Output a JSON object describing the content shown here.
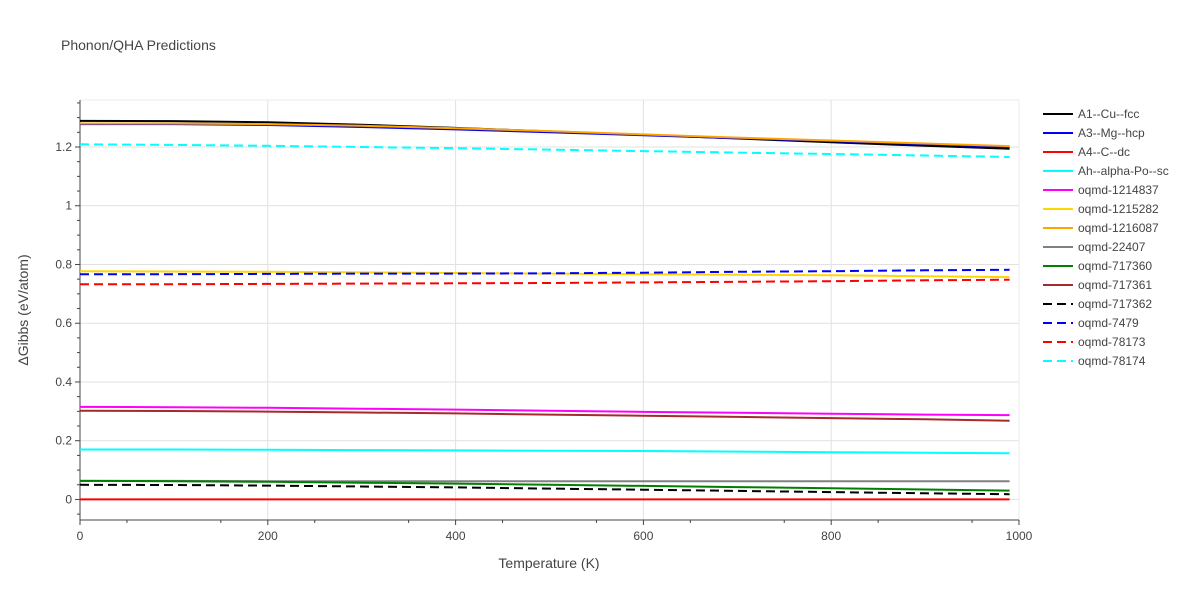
{
  "chart_data": {
    "type": "line",
    "title": "Phonon/QHA Predictions",
    "xlabel": "Temperature (K)",
    "ylabel": "ΔGibbs (eV/atom)",
    "xlim": [
      0,
      1000
    ],
    "ylim": [
      -0.07,
      1.36
    ],
    "xticks": [
      0,
      200,
      400,
      600,
      800,
      1000
    ],
    "yticks": [
      0,
      0.2,
      0.4,
      0.6,
      0.8,
      1,
      1.2
    ],
    "xtick_labels": [
      "0",
      "200",
      "400",
      "600",
      "800",
      "1000"
    ],
    "ytick_labels": [
      "0",
      "0.2",
      "0.4",
      "0.6",
      "0.8",
      "1",
      "1.2"
    ],
    "grid": true,
    "legend_position": "right",
    "x": [
      0,
      100,
      200,
      300,
      400,
      500,
      600,
      700,
      800,
      900,
      990
    ],
    "series": [
      {
        "name": "A1--Cu--fcc",
        "color": "#000000",
        "dash": "solid",
        "values": [
          1.289,
          1.288,
          1.284,
          1.276,
          1.265,
          1.253,
          1.242,
          1.229,
          1.216,
          1.204,
          1.194
        ]
      },
      {
        "name": "A3--Mg--hcp",
        "color": "#0000ff",
        "dash": "solid",
        "values": [
          1.278,
          1.278,
          1.275,
          1.268,
          1.26,
          1.25,
          1.24,
          1.23,
          1.22,
          1.21,
          1.2
        ]
      },
      {
        "name": "A4--C--dc",
        "color": "#ff0000",
        "dash": "solid",
        "values": [
          0.0,
          0.0,
          0.0,
          0.0,
          0.0,
          0.0,
          0.0,
          0.0,
          0.0,
          0.0,
          0.0
        ]
      },
      {
        "name": "Ah--alpha-Po--sc",
        "color": "#00ffff",
        "dash": "solid",
        "values": [
          0.17,
          0.17,
          0.169,
          0.168,
          0.167,
          0.166,
          0.165,
          0.163,
          0.161,
          0.159,
          0.157
        ]
      },
      {
        "name": "oqmd-1214837",
        "color": "#ff00ff",
        "dash": "solid",
        "values": [
          0.315,
          0.314,
          0.312,
          0.309,
          0.306,
          0.302,
          0.298,
          0.295,
          0.292,
          0.289,
          0.287
        ]
      },
      {
        "name": "oqmd-1215282",
        "color": "#ffd700",
        "dash": "solid",
        "values": [
          0.777,
          0.776,
          0.775,
          0.773,
          0.771,
          0.769,
          0.767,
          0.765,
          0.763,
          0.76,
          0.757
        ]
      },
      {
        "name": "oqmd-1216087",
        "color": "#ffa500",
        "dash": "solid",
        "values": [
          1.28,
          1.28,
          1.278,
          1.272,
          1.264,
          1.254,
          1.243,
          1.232,
          1.222,
          1.212,
          1.203
        ]
      },
      {
        "name": "oqmd-22407",
        "color": "#808080",
        "dash": "solid",
        "values": [
          0.063,
          0.063,
          0.062,
          0.062,
          0.062,
          0.062,
          0.062,
          0.062,
          0.062,
          0.062,
          0.062
        ]
      },
      {
        "name": "oqmd-717360",
        "color": "#008000",
        "dash": "solid",
        "values": [
          0.063,
          0.062,
          0.06,
          0.057,
          0.054,
          0.05,
          0.046,
          0.042,
          0.038,
          0.034,
          0.03
        ]
      },
      {
        "name": "oqmd-717361",
        "color": "#a52a2a",
        "dash": "solid",
        "values": [
          0.302,
          0.301,
          0.299,
          0.296,
          0.293,
          0.289,
          0.285,
          0.281,
          0.277,
          0.273,
          0.268
        ]
      },
      {
        "name": "oqmd-717362",
        "color": "#000000",
        "dash": "dash",
        "values": [
          0.05,
          0.049,
          0.047,
          0.044,
          0.041,
          0.037,
          0.033,
          0.029,
          0.025,
          0.021,
          0.018
        ]
      },
      {
        "name": "oqmd-7479",
        "color": "#0000ff",
        "dash": "dash",
        "values": [
          0.767,
          0.767,
          0.768,
          0.769,
          0.769,
          0.77,
          0.772,
          0.775,
          0.777,
          0.78,
          0.782
        ]
      },
      {
        "name": "oqmd-78173",
        "color": "#ff0000",
        "dash": "dash",
        "values": [
          0.733,
          0.733,
          0.734,
          0.735,
          0.736,
          0.737,
          0.739,
          0.741,
          0.743,
          0.746,
          0.748
        ]
      },
      {
        "name": "oqmd-78174",
        "color": "#00ffff",
        "dash": "dash",
        "values": [
          1.209,
          1.207,
          1.204,
          1.2,
          1.196,
          1.191,
          1.186,
          1.181,
          1.176,
          1.171,
          1.166
        ]
      }
    ]
  }
}
